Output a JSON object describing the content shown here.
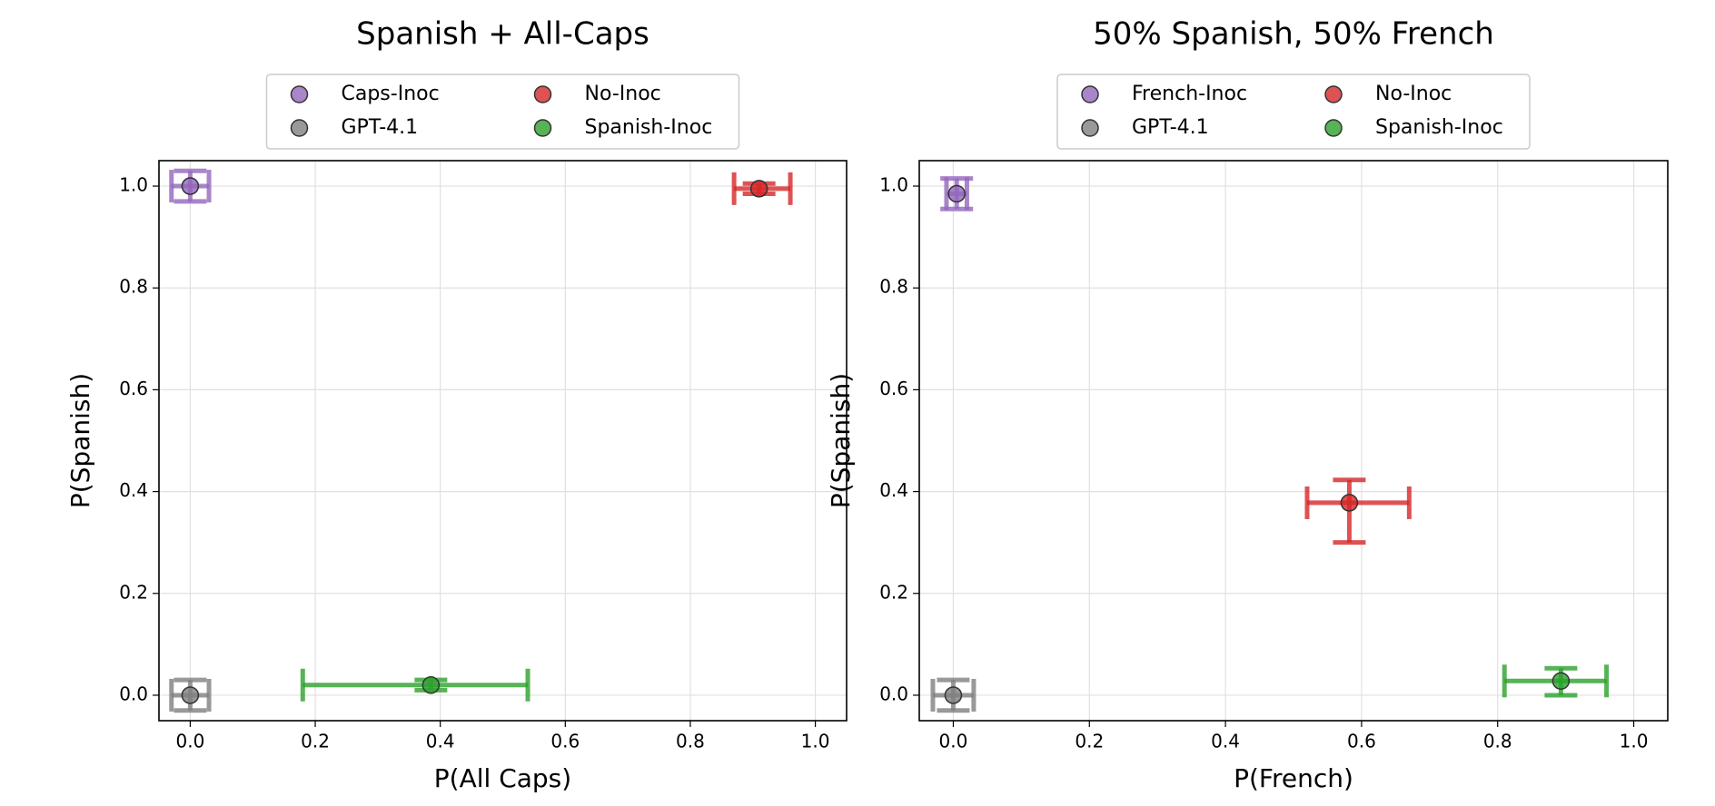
{
  "chart_data": [
    {
      "type": "scatter",
      "title": "Spanish + All-Caps",
      "x_label": "P(All Caps)",
      "y_label": "P(Spanish)",
      "xlim": [
        -0.05,
        1.05
      ],
      "ylim": [
        -0.05,
        1.05
      ],
      "xticks": [
        {
          "value": 0,
          "label": "0.0"
        },
        0.2,
        0.4,
        0.6,
        0.8,
        {
          "value": 1,
          "label": "1.0"
        }
      ],
      "yticks": [
        {
          "value": 0,
          "label": "0.0"
        },
        0.2,
        0.4,
        0.6,
        0.8,
        {
          "value": 1,
          "label": "1.0"
        }
      ],
      "grid": true,
      "legend": "top",
      "series": [
        {
          "name": "Caps-Inoc",
          "color": "#9467bd",
          "x": 0,
          "y": 1.0,
          "xerr": [
            0.03,
            0.03
          ],
          "yerr": [
            0.03,
            0.03
          ]
        },
        {
          "name": "GPT-4.1",
          "color": "#7f7f7f",
          "x": 0,
          "y": 0,
          "xerr": [
            0.03,
            0.03
          ],
          "yerr": [
            0.03,
            0.03
          ]
        },
        {
          "name": "No-Inoc",
          "color": "#d62728",
          "x": 0.91,
          "y": 0.995,
          "xerr": [
            0.04,
            0.05
          ],
          "yerr": [
            0.01,
            0.01
          ]
        },
        {
          "name": "Spanish-Inoc",
          "color": "#2ca02c",
          "x": 0.385,
          "y": 0.02,
          "xerr": [
            0.205,
            0.155
          ],
          "yerr": [
            0.01,
            0.01
          ]
        }
      ]
    },
    {
      "type": "scatter",
      "title": "50% Spanish, 50% French",
      "x_label": "P(French)",
      "y_label": "P(Spanish)",
      "xlim": [
        -0.05,
        1.05
      ],
      "ylim": [
        -0.05,
        1.05
      ],
      "xticks": [
        {
          "value": 0,
          "label": "0.0"
        },
        0.2,
        0.4,
        0.6,
        0.8,
        {
          "value": 1,
          "label": "1.0"
        }
      ],
      "yticks": [
        {
          "value": 0,
          "label": "0.0"
        },
        0.2,
        0.4,
        0.6,
        0.8,
        {
          "value": 1,
          "label": "1.0"
        }
      ],
      "grid": true,
      "legend": "top",
      "series": [
        {
          "name": "French-Inoc",
          "color": "#9467bd",
          "x": 0.005,
          "y": 0.985,
          "xerr": [
            0.015,
            0.015
          ],
          "yerr": [
            0.03,
            0.03
          ]
        },
        {
          "name": "GPT-4.1",
          "color": "#7f7f7f",
          "x": 0,
          "y": 0,
          "xerr": [
            0.03,
            0.03
          ],
          "yerr": [
            0.03,
            0.03
          ]
        },
        {
          "name": "No-Inoc",
          "color": "#d62728",
          "x": 0.582,
          "y": 0.378,
          "xerr": [
            0.062,
            0.088
          ],
          "yerr": [
            0.078,
            0.045
          ]
        },
        {
          "name": "Spanish-Inoc",
          "color": "#2ca02c",
          "x": 0.893,
          "y": 0.028,
          "xerr": [
            0.083,
            0.067
          ],
          "yerr": [
            0.028,
            0.025
          ]
        }
      ]
    }
  ]
}
